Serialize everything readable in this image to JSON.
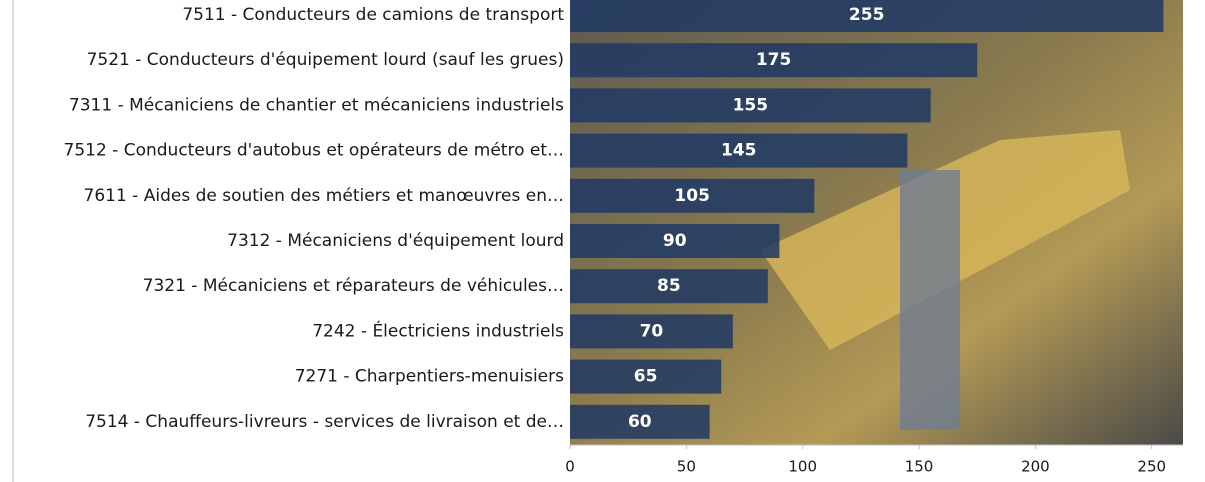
{
  "chart_data": {
    "type": "bar",
    "orientation": "horizontal",
    "categories": [
      "7511 - Conducteurs de camions de transport",
      "7521 - Conducteurs d'équipement lourd (sauf les grues)",
      "7311 - Mécaniciens de chantier et mécaniciens industriels",
      "7512 - Conducteurs d'autobus et opérateurs de métro et…",
      "7611 - Aides de soutien des métiers et manœuvres en…",
      "7312 - Mécaniciens d'équipement lourd",
      "7321 - Mécaniciens et réparateurs de véhicules…",
      "7242 - Électriciens industriels",
      "7271 - Charpentiers-menuisiers",
      "7514 - Chauffeurs-livreurs - services de livraison et de…"
    ],
    "values": [
      255,
      175,
      155,
      145,
      105,
      90,
      85,
      70,
      65,
      60
    ],
    "color": "#1f3864",
    "xlim": [
      0,
      260
    ],
    "xticks": [
      0,
      50,
      100,
      150,
      200,
      250
    ]
  }
}
